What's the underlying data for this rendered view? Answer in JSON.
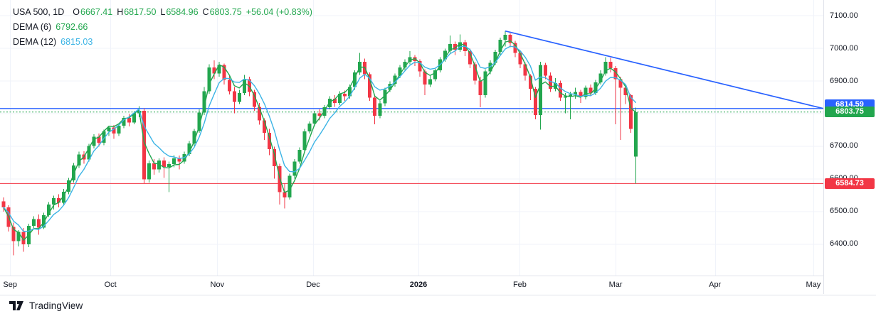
{
  "legend": {
    "title": "USA 500, 1D",
    "o_label": "O",
    "o": "6667.41",
    "h_label": "H",
    "h": "6817.50",
    "l_label": "L",
    "l": "6584.96",
    "c_label": "C",
    "c": "6803.75",
    "change": "+56.04 (+0.83%)",
    "dema6_label": "DEMA (6)",
    "dema6_value": "6792.66",
    "dema12_label": "DEMA (12)",
    "dema12_value": "6815.03"
  },
  "footer": {
    "brand": "TradingView"
  },
  "colors": {
    "up": "#22a64e",
    "down": "#f23645",
    "blue": "#2962ff",
    "cyan": "#3cb4e5",
    "text": "#131722",
    "grid": "#f0f3fa",
    "axis_border": "#e0e3eb",
    "white": "#ffffff"
  },
  "chart_data": {
    "type": "candlestick",
    "symbol": "USA 500",
    "interval": "1D",
    "title": "USA 500, 1D",
    "ylim": [
      6302.6,
      7147.2
    ],
    "grid": true,
    "y_gridlines": [
      7100,
      7000,
      6900,
      6800,
      6700,
      6600,
      6500,
      6400
    ],
    "y_tick_labels": [
      {
        "label": "7100.00",
        "price": 7100
      },
      {
        "label": "7000.00",
        "price": 7000
      },
      {
        "label": "6900.00",
        "price": 6900
      },
      {
        "label": "6700.00",
        "price": 6700
      },
      {
        "label": "6600.00",
        "price": 6600
      },
      {
        "label": "6500.00",
        "price": 6500
      },
      {
        "label": "6400.00",
        "price": 6400
      }
    ],
    "x_ticks": [
      {
        "label": "Sep",
        "i": 1.3,
        "year": false
      },
      {
        "label": "Oct",
        "i": 21.3,
        "year": false
      },
      {
        "label": "Nov",
        "i": 42.6,
        "year": false
      },
      {
        "label": "Dec",
        "i": 61.7,
        "year": false
      },
      {
        "label": "2026",
        "i": 82.7,
        "year": true
      },
      {
        "label": "Feb",
        "i": 102.9,
        "year": false
      },
      {
        "label": "Mar",
        "i": 122.0,
        "year": false
      },
      {
        "label": "Apr",
        "i": 141.8,
        "year": false
      },
      {
        "label": "May",
        "i": 161.4,
        "year": false
      }
    ],
    "price_lines": [
      {
        "price": 6814.59,
        "label": "6814.59",
        "color": "#2962ff",
        "style": "solid",
        "badge_y_price": 6825.5
      },
      {
        "price": 6803.75,
        "label": "6803.75",
        "color": "#22a64e",
        "style": "dotted",
        "badge_y_price": 6803.75
      },
      {
        "price": 6584.73,
        "label": "6584.73",
        "color": "#f23645",
        "style": "solid",
        "badge_y_price": 6584.73
      }
    ],
    "trendline": {
      "i1": 100,
      "price1": 7052,
      "i2": 163.4,
      "price2": 6814.59,
      "color": "#2962ff"
    },
    "overlays": [
      {
        "name": "DEMA (6)",
        "period": 6,
        "color": "#22a64e",
        "last": 6792.66
      },
      {
        "name": "DEMA (12)",
        "period": 12,
        "color": "#3cb4e5",
        "last": 6815.03
      }
    ],
    "last_bar": {
      "open": 6667.41,
      "high": 6817.5,
      "low": 6584.96,
      "close": 6803.75,
      "change": "+56.04 (+0.83%)"
    },
    "candles": [
      [
        6530,
        6542,
        6498,
        6512
      ],
      [
        6512,
        6518,
        6438,
        6452
      ],
      [
        6452,
        6465,
        6365,
        6408
      ],
      [
        6408,
        6442,
        6392,
        6436
      ],
      [
        6436,
        6448,
        6376,
        6398
      ],
      [
        6398,
        6462,
        6390,
        6455
      ],
      [
        6455,
        6484,
        6448,
        6476
      ],
      [
        6476,
        6490,
        6428,
        6450
      ],
      [
        6450,
        6495,
        6445,
        6488
      ],
      [
        6488,
        6528,
        6482,
        6520
      ],
      [
        6520,
        6548,
        6505,
        6540
      ],
      [
        6540,
        6552,
        6512,
        6526
      ],
      [
        6526,
        6568,
        6520,
        6560
      ],
      [
        6560,
        6602,
        6552,
        6594
      ],
      [
        6594,
        6648,
        6588,
        6640
      ],
      [
        6640,
        6682,
        6632,
        6674
      ],
      [
        6674,
        6684,
        6645,
        6658
      ],
      [
        6658,
        6706,
        6652,
        6700
      ],
      [
        6700,
        6736,
        6692,
        6728
      ],
      [
        6728,
        6738,
        6698,
        6710
      ],
      [
        6710,
        6750,
        6702,
        6744
      ],
      [
        6744,
        6762,
        6730,
        6756
      ],
      [
        6756,
        6764,
        6722,
        6738
      ],
      [
        6738,
        6768,
        6730,
        6762
      ],
      [
        6762,
        6792,
        6754,
        6786
      ],
      [
        6786,
        6798,
        6760,
        6772
      ],
      [
        6772,
        6806,
        6766,
        6800
      ],
      [
        6800,
        6822,
        6788,
        6808
      ],
      [
        6808,
        6815,
        6585,
        6598
      ],
      [
        6598,
        6655,
        6588,
        6646
      ],
      [
        6646,
        6660,
        6612,
        6628
      ],
      [
        6628,
        6662,
        6618,
        6655
      ],
      [
        6655,
        6665,
        6602,
        6636
      ],
      [
        6636,
        6652,
        6558,
        6644
      ],
      [
        6644,
        6672,
        6635,
        6662
      ],
      [
        6662,
        6670,
        6628,
        6652
      ],
      [
        6652,
        6682,
        6645,
        6675
      ],
      [
        6675,
        6715,
        6668,
        6708
      ],
      [
        6708,
        6752,
        6700,
        6746
      ],
      [
        6746,
        6812,
        6740,
        6802
      ],
      [
        6802,
        6880,
        6795,
        6868
      ],
      [
        6868,
        6950,
        6860,
        6940
      ],
      [
        6940,
        6962,
        6905,
        6922
      ],
      [
        6922,
        6958,
        6912,
        6948
      ],
      [
        6948,
        6952,
        6888,
        6902
      ],
      [
        6902,
        6918,
        6858,
        6868
      ],
      [
        6868,
        6880,
        6800,
        6835
      ],
      [
        6835,
        6872,
        6828,
        6862
      ],
      [
        6862,
        6918,
        6855,
        6905
      ],
      [
        6905,
        6912,
        6852,
        6865
      ],
      [
        6865,
        6872,
        6808,
        6820
      ],
      [
        6820,
        6832,
        6765,
        6778
      ],
      [
        6778,
        6785,
        6718,
        6740
      ],
      [
        6740,
        6752,
        6672,
        6690
      ],
      [
        6690,
        6698,
        6600,
        6638
      ],
      [
        6638,
        6645,
        6520,
        6558
      ],
      [
        6558,
        6585,
        6508,
        6542
      ],
      [
        6542,
        6615,
        6535,
        6608
      ],
      [
        6608,
        6660,
        6600,
        6652
      ],
      [
        6652,
        6695,
        6645,
        6688
      ],
      [
        6688,
        6752,
        6680,
        6745
      ],
      [
        6745,
        6775,
        6738,
        6768
      ],
      [
        6768,
        6808,
        6760,
        6800
      ],
      [
        6800,
        6812,
        6778,
        6792
      ],
      [
        6792,
        6825,
        6785,
        6818
      ],
      [
        6818,
        6852,
        6812,
        6845
      ],
      [
        6845,
        6855,
        6820,
        6832
      ],
      [
        6832,
        6868,
        6825,
        6860
      ],
      [
        6860,
        6870,
        6838,
        6852
      ],
      [
        6852,
        6888,
        6845,
        6880
      ],
      [
        6880,
        6932,
        6872,
        6925
      ],
      [
        6925,
        6985,
        6918,
        6958
      ],
      [
        6958,
        6968,
        6905,
        6920
      ],
      [
        6920,
        6925,
        6838,
        6848
      ],
      [
        6848,
        6855,
        6766,
        6792
      ],
      [
        6792,
        6838,
        6785,
        6830
      ],
      [
        6830,
        6878,
        6822,
        6872
      ],
      [
        6872,
        6898,
        6865,
        6890
      ],
      [
        6890,
        6922,
        6882,
        6915
      ],
      [
        6915,
        6948,
        6908,
        6940
      ],
      [
        6940,
        6965,
        6932,
        6958
      ],
      [
        6958,
        6990,
        6950,
        6972
      ],
      [
        6972,
        6978,
        6945,
        6960
      ],
      [
        6960,
        6965,
        6912,
        6928
      ],
      [
        6928,
        6935,
        6855,
        6888
      ],
      [
        6888,
        6915,
        6880,
        6905
      ],
      [
        6905,
        6938,
        6898,
        6932
      ],
      [
        6932,
        6972,
        6925,
        6965
      ],
      [
        6965,
        6998,
        6958,
        6992
      ],
      [
        6992,
        7038,
        6985,
        7012
      ],
      [
        7012,
        7020,
        6978,
        6995
      ],
      [
        6995,
        7042,
        6988,
        7018
      ],
      [
        7018,
        7025,
        6975,
        6990
      ],
      [
        6990,
        6998,
        6938,
        6950
      ],
      [
        6950,
        6958,
        6888,
        6900
      ],
      [
        6900,
        6912,
        6818,
        6855
      ],
      [
        6855,
        6935,
        6848,
        6928
      ],
      [
        6928,
        6962,
        6920,
        6955
      ],
      [
        6955,
        6995,
        6948,
        6988
      ],
      [
        6988,
        7032,
        6980,
        7025
      ],
      [
        7025,
        7052,
        7005,
        7040
      ],
      [
        7040,
        7045,
        7002,
        7015
      ],
      [
        7015,
        7022,
        6972,
        6985
      ],
      [
        6985,
        6992,
        6938,
        6950
      ],
      [
        6950,
        6956,
        6900,
        6915
      ],
      [
        6915,
        6920,
        6840,
        6875
      ],
      [
        6875,
        6880,
        6782,
        6795
      ],
      [
        6795,
        6958,
        6750,
        6948
      ],
      [
        6948,
        6955,
        6905,
        6915
      ],
      [
        6915,
        6925,
        6865,
        6875
      ],
      [
        6875,
        6908,
        6868,
        6892
      ],
      [
        6892,
        6900,
        6838,
        6848
      ],
      [
        6848,
        6862,
        6800,
        6852
      ],
      [
        6852,
        6865,
        6782,
        6858
      ],
      [
        6858,
        6878,
        6845,
        6865
      ],
      [
        6865,
        6872,
        6832,
        6850
      ],
      [
        6850,
        6885,
        6842,
        6878
      ],
      [
        6878,
        6888,
        6852,
        6862
      ],
      [
        6862,
        6902,
        6855,
        6895
      ],
      [
        6895,
        6932,
        6888,
        6922
      ],
      [
        6922,
        6972,
        6915,
        6958
      ],
      [
        6958,
        6970,
        6925,
        6938
      ],
      [
        6938,
        6945,
        6766,
        6905
      ],
      [
        6905,
        6912,
        6718,
        6878
      ],
      [
        6878,
        6885,
        6828,
        6855
      ],
      [
        6855,
        6860,
        6740,
        6752
      ],
      [
        6667.41,
        6817.5,
        6584.96,
        6803.75
      ]
    ]
  }
}
